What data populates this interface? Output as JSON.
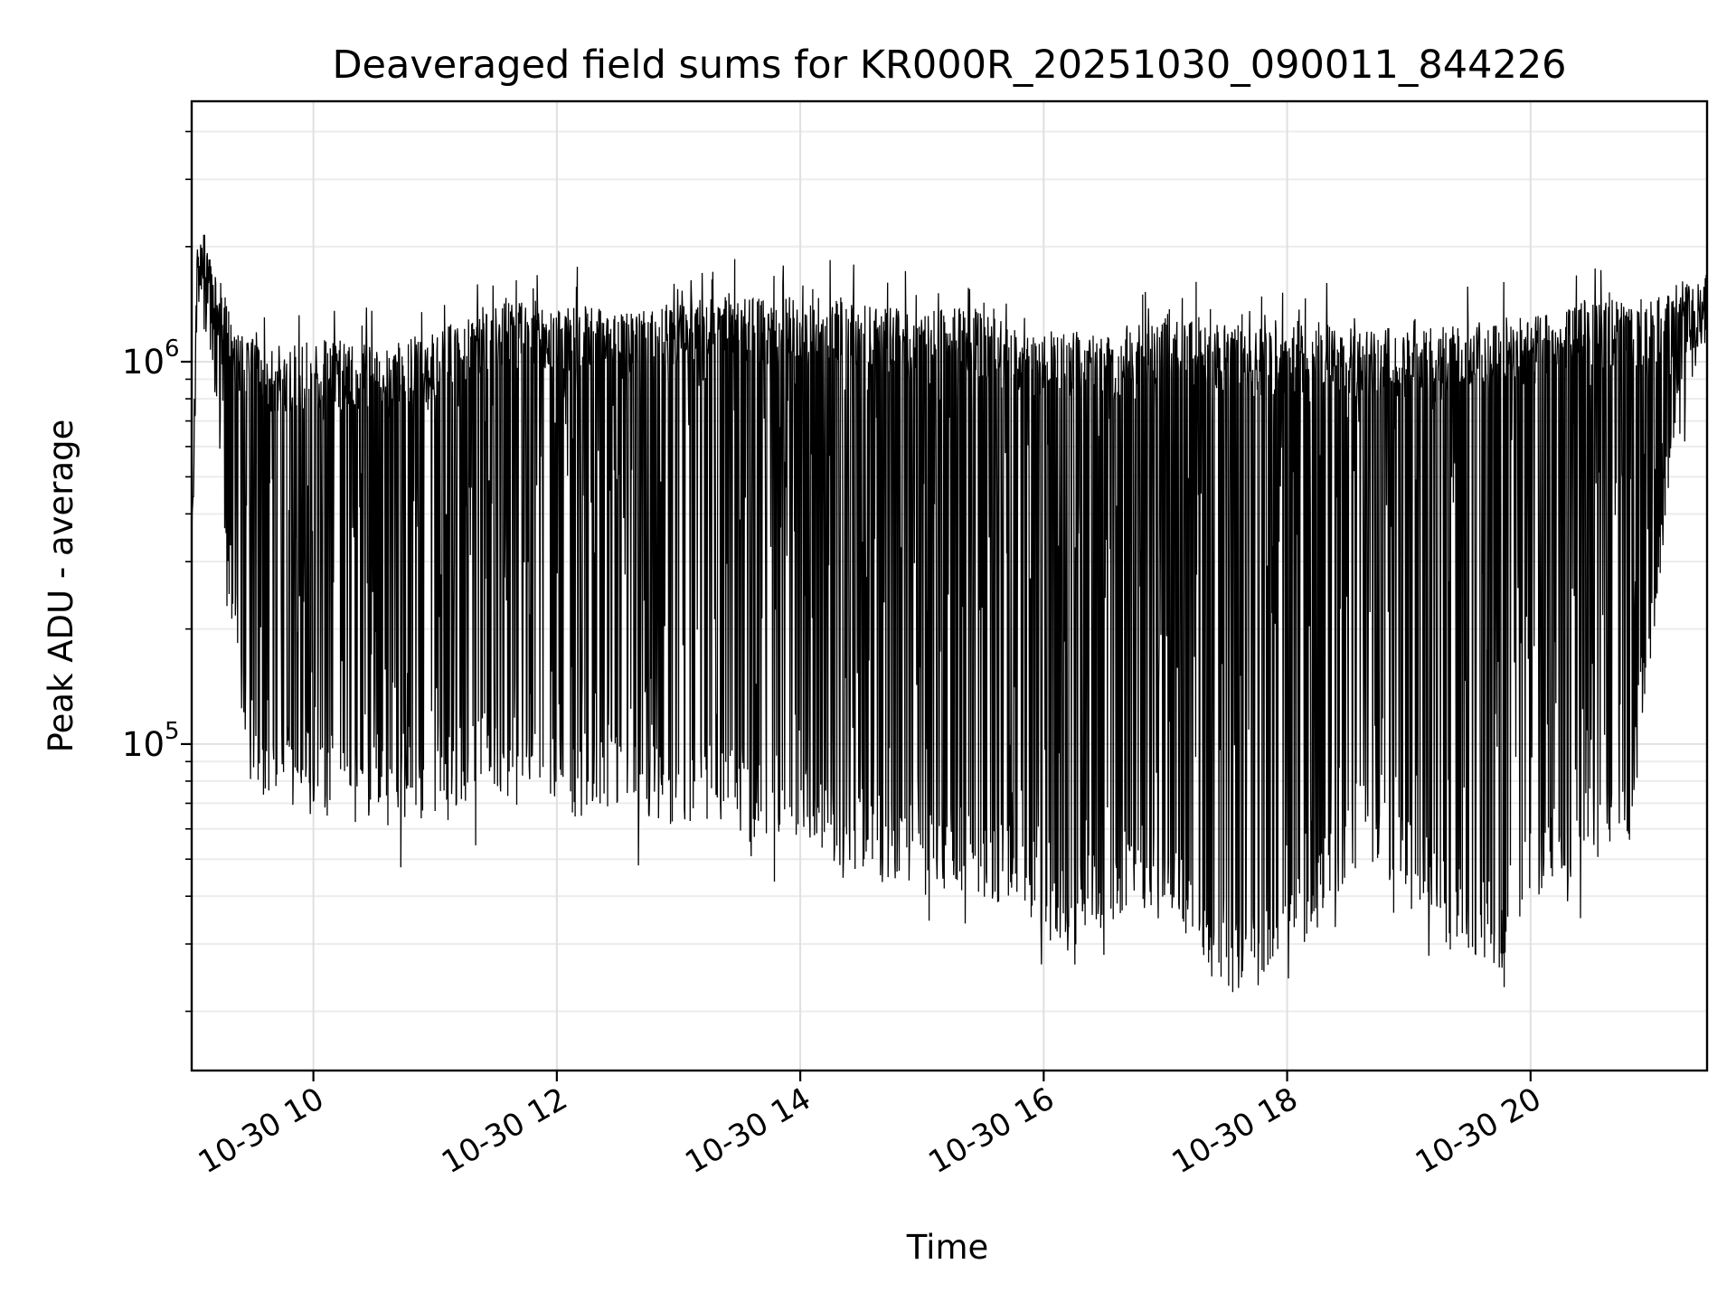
{
  "chart_data": {
    "type": "line",
    "title": "Deaveraged field sums for KR000R_20251030_090011_844226",
    "xlabel": "Time",
    "ylabel": "Peak ADU - average",
    "x_range_hours": [
      9.0,
      21.45
    ],
    "x_ticks": [
      {
        "hour": 10,
        "label": "10-30 10"
      },
      {
        "hour": 12,
        "label": "10-30 12"
      },
      {
        "hour": 14,
        "label": "10-30 14"
      },
      {
        "hour": 16,
        "label": "10-30 16"
      },
      {
        "hour": 18,
        "label": "10-30 18"
      },
      {
        "hour": 20,
        "label": "10-30 20"
      }
    ],
    "y_scale": "log",
    "ylim": [
      14000,
      4800000
    ],
    "y_ticks": [
      {
        "value": 100000,
        "base": "10",
        "exp": "5"
      },
      {
        "value": 1000000,
        "base": "10",
        "exp": "6"
      }
    ],
    "grid": true,
    "line_color": "#000000",
    "envelope": {
      "hours": [
        9.0,
        9.05,
        9.15,
        9.25,
        9.35,
        9.5,
        9.7,
        10.0,
        10.5,
        11.0,
        11.5,
        12.0,
        12.5,
        13.0,
        13.5,
        14.0,
        14.3,
        14.7,
        15.0,
        15.5,
        15.9,
        16.0,
        16.3,
        16.5,
        17.0,
        17.3,
        17.6,
        17.9,
        18.3,
        18.6,
        19.0,
        19.5,
        19.8,
        20.0,
        20.5,
        20.8,
        21.0,
        21.2,
        21.45
      ],
      "upper": [
        350000,
        2400000,
        2000000,
        1600000,
        1200000,
        1150000,
        1100000,
        1150000,
        1100000,
        1200000,
        1450000,
        1450000,
        1350000,
        1450000,
        1500000,
        1450000,
        1500000,
        1380000,
        1420000,
        1350000,
        1200000,
        1250000,
        1220000,
        1150000,
        1350000,
        1300000,
        1250000,
        1200000,
        1300000,
        1200000,
        1220000,
        1250000,
        1320000,
        1300000,
        1450000,
        1480000,
        1450000,
        1550000,
        1700000
      ],
      "lower": [
        300000,
        1200000,
        1000000,
        400000,
        150000,
        75000,
        70000,
        65000,
        60000,
        65000,
        75000,
        65000,
        65000,
        60000,
        60000,
        55000,
        48000,
        45000,
        42000,
        40000,
        35000,
        30000,
        32000,
        35000,
        38000,
        25000,
        22000,
        21000,
        35000,
        50000,
        40000,
        28000,
        25000,
        38000,
        48000,
        50000,
        180000,
        600000,
        1200000
      ]
    }
  }
}
